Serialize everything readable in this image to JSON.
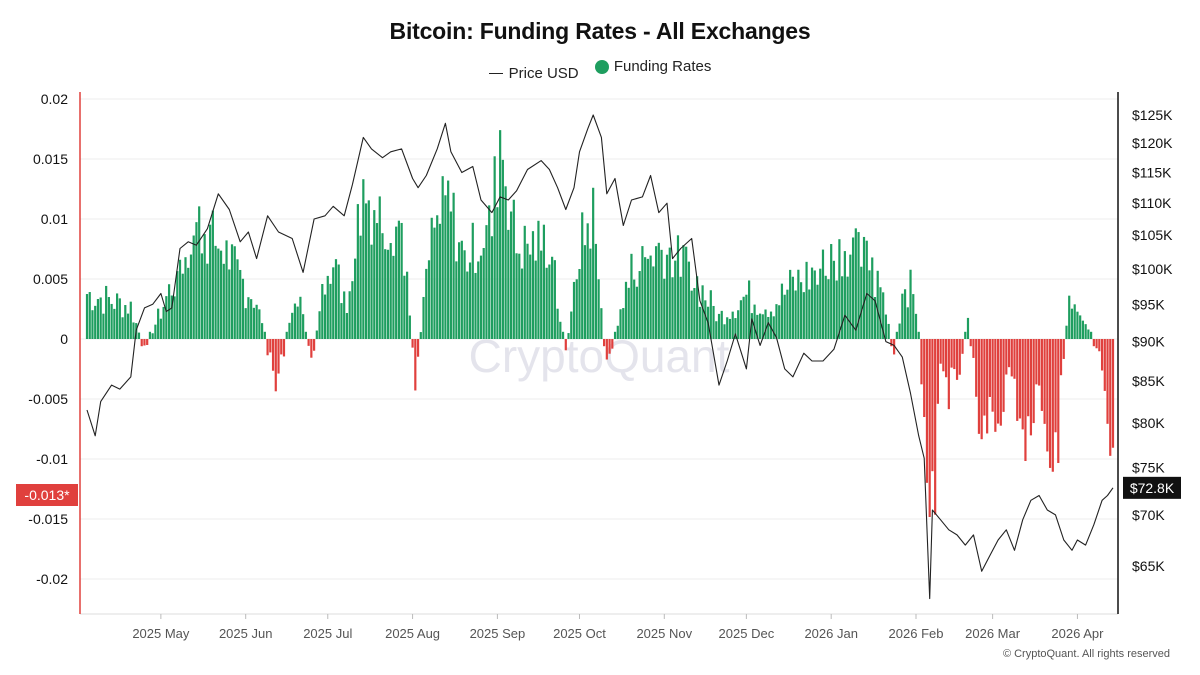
{
  "chart_data": {
    "type": "bar+line",
    "title": "Bitcoin: Funding Rates - All Exchanges",
    "legend": [
      {
        "name": "Price USD",
        "kind": "line",
        "color": "#222222"
      },
      {
        "name": "Funding Rates",
        "kind": "dot",
        "color": "#1e9e5f"
      }
    ],
    "colors": {
      "positive": "#1e9e5f",
      "negative": "#e0403d",
      "line": "#222222",
      "axis_highlight": "#e0403d"
    },
    "left_axis": {
      "min": -0.023,
      "max": 0.02,
      "ticks": [
        0.02,
        0.015,
        0.01,
        0.005,
        0,
        -0.005,
        -0.01,
        -0.015,
        -0.02
      ],
      "tick_labels": [
        "0.02",
        "0.015",
        "0.01",
        "0.005",
        "0",
        "-0.005",
        "-0.01",
        "-0.015",
        "-0.02"
      ]
    },
    "right_axis": {
      "scale": "log",
      "min": 60000,
      "max": 130000,
      "ticks": [
        125000,
        120000,
        115000,
        110000,
        105000,
        100000,
        95000,
        90000,
        85000,
        80000,
        75000,
        70000,
        65000
      ],
      "tick_labels": [
        "$125K",
        "$120K",
        "$115K",
        "$110K",
        "$105K",
        "$100K",
        "$95K",
        "$90K",
        "$85K",
        "$80K",
        "$75K",
        "$70K",
        "$65K"
      ]
    },
    "current_funding": {
      "value": -0.013,
      "label": "-0.013*"
    },
    "current_price": {
      "value": 72800,
      "label": "$72.8K"
    },
    "x_axis": {
      "start": "2025-04-04",
      "end": "2026-04-14",
      "ticks": [
        {
          "date": "2025-05-01",
          "label": "2025 May"
        },
        {
          "date": "2025-06-01",
          "label": "2025 Jun"
        },
        {
          "date": "2025-07-01",
          "label": "2025 Jul"
        },
        {
          "date": "2025-08-01",
          "label": "2025 Aug"
        },
        {
          "date": "2025-09-01",
          "label": "2025 Sep"
        },
        {
          "date": "2025-10-01",
          "label": "2025 Oct"
        },
        {
          "date": "2025-11-01",
          "label": "2025 Nov"
        },
        {
          "date": "2025-12-01",
          "label": "2025 Dec"
        },
        {
          "date": "2026-01-01",
          "label": "2026 Jan"
        },
        {
          "date": "2026-02-01",
          "label": "2026 Feb"
        },
        {
          "date": "2026-03-01",
          "label": "2026 Mar"
        },
        {
          "date": "2026-04-01",
          "label": "2026 Apr"
        }
      ]
    },
    "price_series": [
      [
        "2025-04-04",
        81500
      ],
      [
        "2025-04-07",
        78500
      ],
      [
        "2025-04-09",
        82500
      ],
      [
        "2025-04-13",
        84500
      ],
      [
        "2025-04-16",
        84000
      ],
      [
        "2025-04-20",
        85500
      ],
      [
        "2025-04-22",
        91500
      ],
      [
        "2025-04-25",
        94500
      ],
      [
        "2025-04-28",
        95000
      ],
      [
        "2025-05-01",
        96500
      ],
      [
        "2025-05-03",
        94000
      ],
      [
        "2025-05-05",
        94500
      ],
      [
        "2025-05-08",
        103000
      ],
      [
        "2025-05-11",
        104000
      ],
      [
        "2025-05-14",
        103500
      ],
      [
        "2025-05-18",
        106000
      ],
      [
        "2025-05-22",
        111500
      ],
      [
        "2025-05-26",
        109000
      ],
      [
        "2025-05-30",
        104000
      ],
      [
        "2025-06-02",
        105500
      ],
      [
        "2025-06-05",
        101500
      ],
      [
        "2025-06-09",
        108000
      ],
      [
        "2025-06-13",
        105500
      ],
      [
        "2025-06-18",
        104500
      ],
      [
        "2025-06-22",
        99500
      ],
      [
        "2025-06-26",
        107500
      ],
      [
        "2025-06-30",
        108000
      ],
      [
        "2025-07-03",
        109500
      ],
      [
        "2025-07-07",
        108000
      ],
      [
        "2025-07-10",
        113000
      ],
      [
        "2025-07-14",
        121000
      ],
      [
        "2025-07-17",
        119000
      ],
      [
        "2025-07-21",
        117500
      ],
      [
        "2025-07-24",
        118500
      ],
      [
        "2025-07-28",
        119000
      ],
      [
        "2025-08-01",
        114000
      ],
      [
        "2025-08-03",
        112500
      ],
      [
        "2025-08-06",
        114500
      ],
      [
        "2025-08-10",
        119000
      ],
      [
        "2025-08-13",
        123500
      ],
      [
        "2025-08-15",
        118500
      ],
      [
        "2025-08-19",
        115000
      ],
      [
        "2025-08-23",
        116000
      ],
      [
        "2025-08-26",
        110500
      ],
      [
        "2025-08-30",
        108500
      ],
      [
        "2025-09-02",
        111000
      ],
      [
        "2025-09-05",
        110500
      ],
      [
        "2025-09-08",
        112000
      ],
      [
        "2025-09-12",
        115500
      ],
      [
        "2025-09-17",
        117000
      ],
      [
        "2025-09-20",
        115500
      ],
      [
        "2025-09-23",
        112500
      ],
      [
        "2025-09-26",
        109000
      ],
      [
        "2025-09-29",
        112500
      ],
      [
        "2025-10-01",
        118500
      ],
      [
        "2025-10-04",
        122500
      ],
      [
        "2025-10-06",
        125000
      ],
      [
        "2025-10-09",
        121000
      ],
      [
        "2025-10-11",
        111500
      ],
      [
        "2025-10-14",
        114000
      ],
      [
        "2025-10-17",
        106500
      ],
      [
        "2025-10-20",
        110500
      ],
      [
        "2025-10-24",
        111000
      ],
      [
        "2025-10-27",
        114500
      ],
      [
        "2025-10-30",
        108500
      ],
      [
        "2025-11-02",
        110000
      ],
      [
        "2025-11-04",
        101500
      ],
      [
        "2025-11-07",
        103000
      ],
      [
        "2025-11-11",
        104500
      ],
      [
        "2025-11-14",
        95500
      ],
      [
        "2025-11-17",
        92500
      ],
      [
        "2025-11-21",
        84500
      ],
      [
        "2025-11-24",
        87500
      ],
      [
        "2025-11-27",
        91000
      ],
      [
        "2025-12-01",
        86500
      ],
      [
        "2025-12-03",
        93000
      ],
      [
        "2025-12-06",
        89500
      ],
      [
        "2025-12-09",
        92500
      ],
      [
        "2025-12-12",
        90500
      ],
      [
        "2025-12-15",
        86500
      ],
      [
        "2025-12-18",
        85500
      ],
      [
        "2025-12-22",
        88500
      ],
      [
        "2025-12-25",
        87500
      ],
      [
        "2025-12-29",
        87500
      ],
      [
        "2026-01-02",
        89000
      ],
      [
        "2026-01-06",
        93500
      ],
      [
        "2026-01-10",
        91500
      ],
      [
        "2026-01-14",
        96500
      ],
      [
        "2026-01-17",
        95500
      ],
      [
        "2026-01-21",
        90000
      ],
      [
        "2026-01-24",
        89500
      ],
      [
        "2026-01-27",
        88000
      ],
      [
        "2026-01-30",
        83500
      ],
      [
        "2026-02-02",
        78500
      ],
      [
        "2026-02-04",
        76000
      ],
      [
        "2026-02-06",
        62000
      ],
      [
        "2026-02-07",
        70500
      ],
      [
        "2026-02-10",
        69500
      ],
      [
        "2026-02-13",
        68500
      ],
      [
        "2026-02-16",
        68000
      ],
      [
        "2026-02-19",
        67000
      ],
      [
        "2026-02-22",
        68000
      ],
      [
        "2026-02-25",
        64500
      ],
      [
        "2026-02-28",
        66000
      ],
      [
        "2026-03-03",
        67500
      ],
      [
        "2026-03-06",
        68500
      ],
      [
        "2026-03-09",
        66500
      ],
      [
        "2026-03-12",
        69500
      ],
      [
        "2026-03-15",
        71500
      ],
      [
        "2026-03-18",
        72000
      ],
      [
        "2026-03-21",
        70500
      ],
      [
        "2026-03-24",
        70000
      ],
      [
        "2026-03-27",
        67500
      ],
      [
        "2026-03-30",
        66500
      ],
      [
        "2026-04-01",
        67500
      ],
      [
        "2026-04-04",
        67000
      ],
      [
        "2026-04-07",
        69000
      ],
      [
        "2026-04-10",
        71500
      ],
      [
        "2026-04-12",
        72000
      ],
      [
        "2026-04-14",
        72800
      ]
    ],
    "funding_anchors": [
      [
        "2025-04-04",
        0.0042
      ],
      [
        "2025-04-20",
        0.003
      ],
      [
        "2025-04-25",
        -0.001
      ],
      [
        "2025-05-05",
        0.005
      ],
      [
        "2025-05-11",
        0.0085
      ],
      [
        "2025-05-15",
        0.01
      ],
      [
        "2025-05-25",
        0.0075
      ],
      [
        "2025-06-05",
        0.0035
      ],
      [
        "2025-06-12",
        -0.0045
      ],
      [
        "2025-06-20",
        0.0045
      ],
      [
        "2025-06-25",
        -0.0025
      ],
      [
        "2025-07-01",
        0.007
      ],
      [
        "2025-07-08",
        0.004
      ],
      [
        "2025-07-14",
        0.013
      ],
      [
        "2025-07-20",
        0.011
      ],
      [
        "2025-07-28",
        0.01
      ],
      [
        "2025-08-02",
        -0.0035
      ],
      [
        "2025-08-08",
        0.009
      ],
      [
        "2025-08-14",
        0.012
      ],
      [
        "2025-08-20",
        0.007
      ],
      [
        "2025-08-30",
        0.01
      ],
      [
        "2025-09-02",
        0.0185
      ],
      [
        "2025-09-08",
        0.008
      ],
      [
        "2025-09-20",
        0.0085
      ],
      [
        "2025-09-26",
        -0.0015
      ],
      [
        "2025-10-01",
        0.008
      ],
      [
        "2025-10-06",
        0.011
      ],
      [
        "2025-10-11",
        -0.003
      ],
      [
        "2025-10-20",
        0.006
      ],
      [
        "2025-10-30",
        0.008
      ],
      [
        "2025-11-10",
        0.0065
      ],
      [
        "2025-11-21",
        0.002
      ],
      [
        "2025-12-01",
        0.004
      ],
      [
        "2025-12-10",
        0.003
      ],
      [
        "2025-12-18",
        0.005
      ],
      [
        "2025-12-25",
        0.006
      ],
      [
        "2026-01-06",
        0.008
      ],
      [
        "2026-01-14",
        0.007
      ],
      [
        "2026-01-20",
        0.004
      ],
      [
        "2026-01-24",
        -0.0015
      ],
      [
        "2026-01-28",
        0.006
      ],
      [
        "2026-02-01",
        0.003
      ],
      [
        "2026-02-04",
        -0.006
      ],
      [
        "2026-02-06",
        -0.021
      ],
      [
        "2026-02-10",
        -0.004
      ],
      [
        "2026-02-16",
        -0.005
      ],
      [
        "2026-02-20",
        0.0025
      ],
      [
        "2026-02-24",
        -0.008
      ],
      [
        "2026-03-02",
        -0.007
      ],
      [
        "2026-03-08",
        -0.003
      ],
      [
        "2026-03-12",
        -0.009
      ],
      [
        "2026-03-18",
        -0.005
      ],
      [
        "2026-03-24",
        -0.0115
      ],
      [
        "2026-03-29",
        0.0045
      ],
      [
        "2026-04-04",
        0.002
      ],
      [
        "2026-04-10",
        -0.0025
      ],
      [
        "2026-04-12",
        -0.01
      ],
      [
        "2026-04-14",
        -0.013
      ]
    ],
    "copyright": "© CryptoQuant. All rights reserved"
  }
}
